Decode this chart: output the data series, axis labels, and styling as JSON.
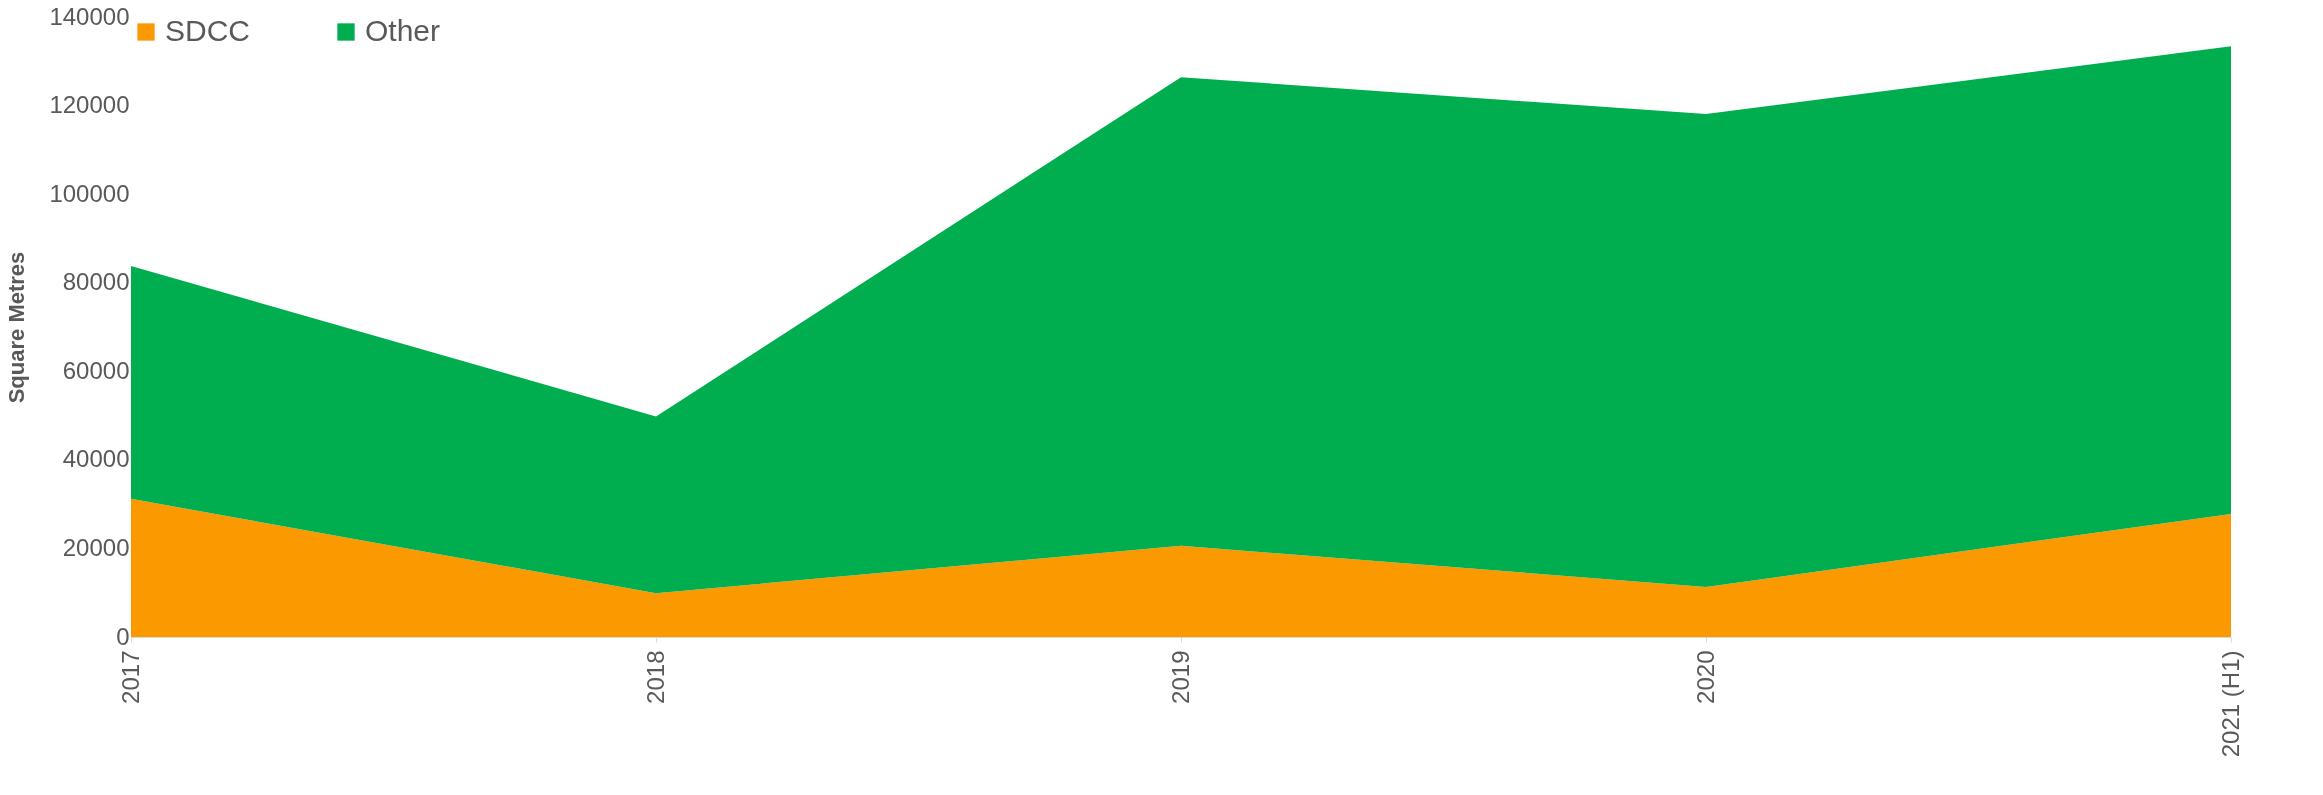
{
  "chart_data": {
    "type": "area",
    "stacked": true,
    "ylabel": "Square Metres",
    "categories": [
      "2017",
      "2018",
      "2019",
      "2020",
      "2021 (H1)"
    ],
    "series": [
      {
        "name": "SDCC",
        "color": "#fa9900",
        "values": [
          31200,
          9900,
          20600,
          11300,
          27800
        ]
      },
      {
        "name": "Other",
        "color": "#00ae4f",
        "values": [
          52600,
          39900,
          105800,
          106800,
          105600
        ]
      }
    ],
    "ylim": [
      0,
      140000
    ],
    "yticks": [
      0,
      20000,
      40000,
      60000,
      80000,
      100000,
      120000,
      140000
    ],
    "grid": false,
    "legend": "top"
  }
}
